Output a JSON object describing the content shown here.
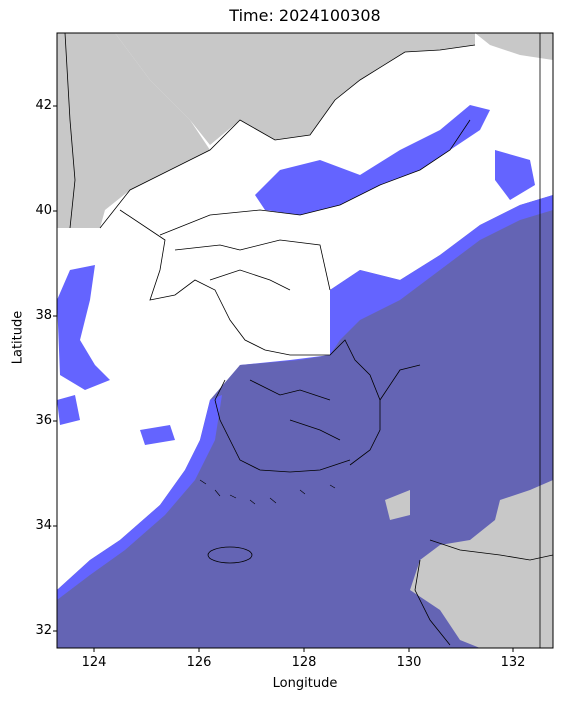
{
  "title": "Time: 2024100308",
  "xlabel": "Longitude",
  "ylabel": "Latitude",
  "x_ticks": [
    "124",
    "126",
    "128",
    "130",
    "132"
  ],
  "y_ticks": [
    "32",
    "34",
    "36",
    "38",
    "40",
    "42"
  ],
  "extent": {
    "lon": [
      123.3,
      132.8
    ],
    "lat": [
      31.65,
      43.35
    ]
  },
  "colors": {
    "land_outside_domain": "#c8c8c8",
    "coast_and_borders": "#000000",
    "fog_over_land": "#6464ff",
    "fog_over_sea": "#6464b4",
    "clear": "#ffffff"
  },
  "legend": "none",
  "grid": false
}
